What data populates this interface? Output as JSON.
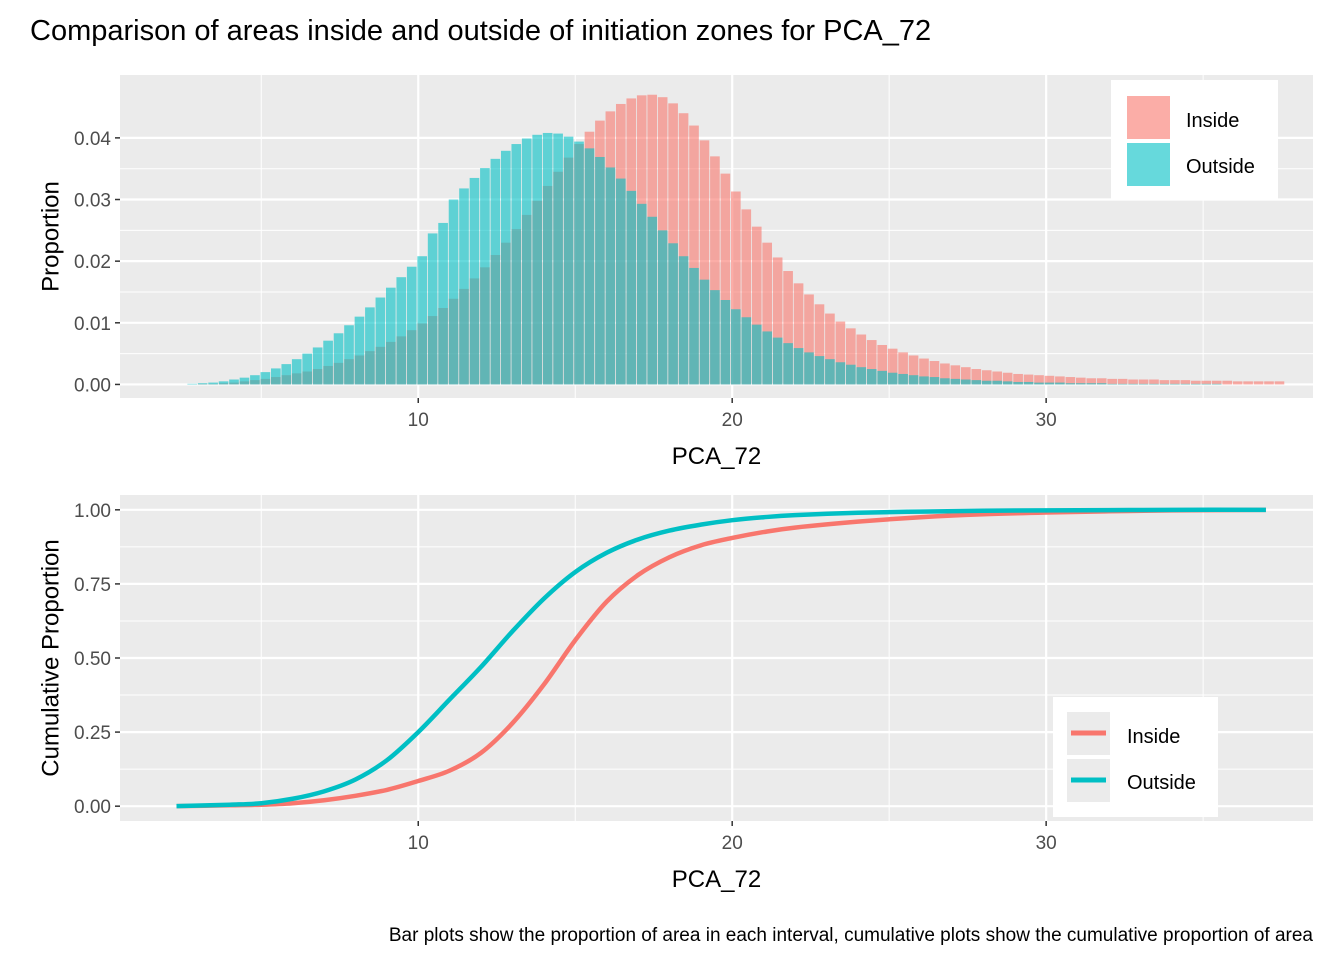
{
  "title": "Comparison of areas inside and outside of initiation zones for PCA_72",
  "caption": "Bar plots show the proportion of area in each interval, cumulative plots show the cumulative proportion of area",
  "colors": {
    "inside": "#F8766D",
    "outside": "#00BFC4",
    "panel": "#EBEBEB",
    "grid": "#FFFFFF",
    "tick_text": "#4D4D4D"
  },
  "chart_data": [
    {
      "type": "bar",
      "xlabel": "PCA_72",
      "ylabel": "Proportion",
      "xlim": [
        0.5,
        38.5
      ],
      "ylim": [
        -0.0022,
        0.0502
      ],
      "x_ticks": [
        10,
        20,
        30
      ],
      "x_tick_labels": [
        "10",
        "20",
        "30"
      ],
      "y_ticks": [
        0,
        0.01,
        0.02,
        0.03,
        0.04
      ],
      "y_tick_labels": [
        "0.00",
        "0.01",
        "0.02",
        "0.03",
        "0.04"
      ],
      "grid": true,
      "legend_position": "top-right",
      "bin_width": 0.333,
      "bin_start": 2.3,
      "series": [
        {
          "name": "Inside",
          "fill": "#F8766D",
          "alpha": 0.6,
          "values": [
            0.0,
            0.0,
            0.0001,
            0.0001,
            0.0002,
            0.0003,
            0.0005,
            0.0007,
            0.0009,
            0.0012,
            0.0015,
            0.0018,
            0.0021,
            0.0025,
            0.003,
            0.0035,
            0.0041,
            0.0047,
            0.0054,
            0.0061,
            0.0069,
            0.0078,
            0.0088,
            0.0099,
            0.0111,
            0.0124,
            0.0139,
            0.0155,
            0.0172,
            0.019,
            0.021,
            0.023,
            0.0252,
            0.0275,
            0.0298,
            0.0322,
            0.0345,
            0.0368,
            0.039,
            0.041,
            0.0428,
            0.0443,
            0.0455,
            0.0464,
            0.0469,
            0.047,
            0.0466,
            0.0456,
            0.044,
            0.042,
            0.0396,
            0.037,
            0.0342,
            0.0313,
            0.0284,
            0.0256,
            0.023,
            0.0206,
            0.0184,
            0.0164,
            0.0146,
            0.013,
            0.0115,
            0.0102,
            0.0091,
            0.0081,
            0.0072,
            0.0064,
            0.0058,
            0.0052,
            0.0047,
            0.0042,
            0.0038,
            0.0034,
            0.0031,
            0.0028,
            0.0025,
            0.0023,
            0.0021,
            0.0019,
            0.0017,
            0.0016,
            0.0015,
            0.0014,
            0.0013,
            0.0012,
            0.0011,
            0.001,
            0.001,
            0.0009,
            0.0009,
            0.0008,
            0.0008,
            0.0008,
            0.0007,
            0.0007,
            0.0007,
            0.0006,
            0.0006,
            0.0006,
            0.0006,
            0.0005,
            0.0005,
            0.0005,
            0.0005,
            0.0005
          ]
        },
        {
          "name": "Outside",
          "fill": "#00BFC4",
          "alpha": 0.6,
          "values": [
            0.0,
            0.0001,
            0.0002,
            0.0003,
            0.0005,
            0.0008,
            0.0011,
            0.0015,
            0.002,
            0.0026,
            0.0033,
            0.0041,
            0.005,
            0.006,
            0.0071,
            0.0083,
            0.0096,
            0.011,
            0.0125,
            0.0141,
            0.0157,
            0.0174,
            0.0191,
            0.0208,
            0.0245,
            0.0262,
            0.03,
            0.0318,
            0.0335,
            0.0351,
            0.0366,
            0.0379,
            0.039,
            0.0399,
            0.0405,
            0.0408,
            0.0407,
            0.0402,
            0.0394,
            0.0383,
            0.0369,
            0.0352,
            0.0334,
            0.0314,
            0.0293,
            0.0272,
            0.025,
            0.0229,
            0.0208,
            0.0189,
            0.017,
            0.0153,
            0.0137,
            0.0122,
            0.0109,
            0.0097,
            0.0086,
            0.0076,
            0.0067,
            0.0059,
            0.0052,
            0.0046,
            0.0041,
            0.0036,
            0.0032,
            0.0028,
            0.0025,
            0.0022,
            0.0019,
            0.0017,
            0.0015,
            0.0013,
            0.0012,
            0.001,
            0.0009,
            0.0008,
            0.0007,
            0.0006,
            0.0006,
            0.0005,
            0.0004,
            0.0004,
            0.0003,
            0.0003,
            0.0003,
            0.0002,
            0.0002,
            0.0002,
            0.0002,
            0.0001,
            0.0001,
            0.0001,
            0.0001,
            0.0001,
            0.0001,
            0.0001,
            0.0001,
            0.0001,
            0.0001,
            0.0001,
            0.0,
            0.0,
            0.0,
            0.0,
            0.0,
            0.0
          ]
        }
      ]
    },
    {
      "type": "line",
      "xlabel": "PCA_72",
      "ylabel": "Cumulative Proportion",
      "xlim": [
        0.5,
        38.5
      ],
      "ylim": [
        -0.05,
        1.05
      ],
      "x_ticks": [
        10,
        20,
        30
      ],
      "x_tick_labels": [
        "10",
        "20",
        "30"
      ],
      "y_ticks": [
        0,
        0.25,
        0.5,
        0.75,
        1
      ],
      "y_tick_labels": [
        "0.00",
        "0.25",
        "0.50",
        "0.75",
        "1.00"
      ],
      "grid": true,
      "legend_position": "bottom-right",
      "series": [
        {
          "name": "Inside",
          "color": "#F8766D",
          "x": [
            2.3,
            4,
            5,
            6,
            7,
            8,
            9,
            10,
            11,
            12,
            13,
            14,
            15,
            16,
            17,
            18,
            19,
            20,
            21,
            22,
            24,
            26,
            28,
            30,
            32,
            34,
            37
          ],
          "y": [
            0.0,
            0.003,
            0.005,
            0.01,
            0.02,
            0.035,
            0.055,
            0.085,
            0.12,
            0.18,
            0.28,
            0.41,
            0.56,
            0.69,
            0.78,
            0.84,
            0.88,
            0.905,
            0.925,
            0.94,
            0.96,
            0.975,
            0.985,
            0.991,
            0.995,
            0.998,
            1.0
          ]
        },
        {
          "name": "Outside",
          "color": "#00BFC4",
          "x": [
            2.3,
            4,
            5,
            6,
            7,
            8,
            9,
            10,
            11,
            12,
            13,
            14,
            15,
            16,
            17,
            18,
            19,
            20,
            21,
            22,
            24,
            26,
            28,
            30,
            32,
            34,
            37
          ],
          "y": [
            0.0,
            0.005,
            0.01,
            0.025,
            0.05,
            0.09,
            0.155,
            0.25,
            0.36,
            0.47,
            0.59,
            0.7,
            0.79,
            0.855,
            0.9,
            0.93,
            0.95,
            0.965,
            0.975,
            0.982,
            0.99,
            0.994,
            0.997,
            0.998,
            0.999,
            1.0,
            1.0
          ]
        }
      ]
    }
  ]
}
